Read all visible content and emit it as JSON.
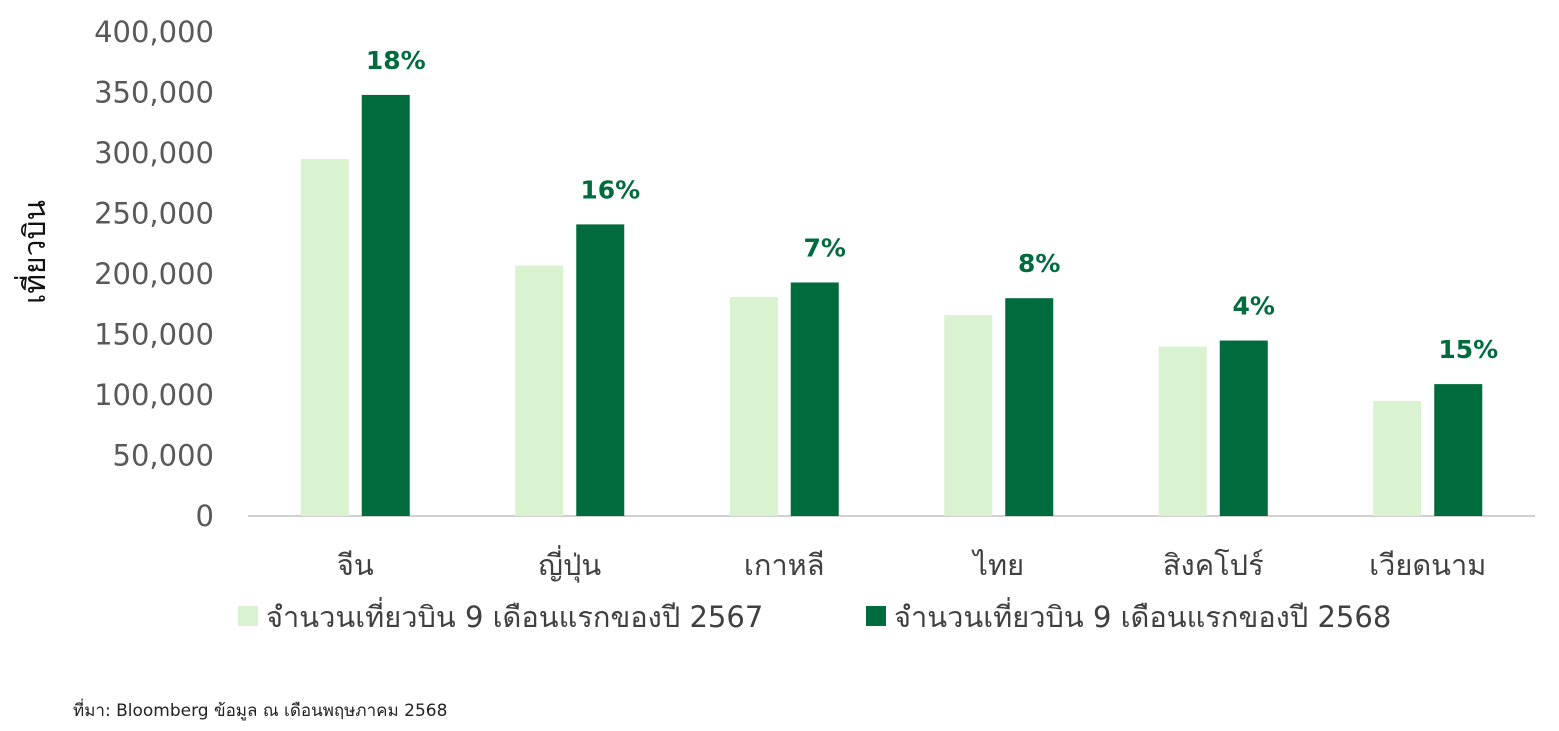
{
  "chart_data": {
    "type": "bar",
    "ylabel": "เที่ยวบิน",
    "ylim": [
      0,
      400000
    ],
    "yticks": [
      "0",
      "50,000",
      "100,000",
      "150,000",
      "200,000",
      "250,000",
      "300,000",
      "350,000",
      "400,000"
    ],
    "ytick_values": [
      0,
      50000,
      100000,
      150000,
      200000,
      250000,
      300000,
      350000,
      400000
    ],
    "categories": [
      "จีน",
      "ญี่ปุ่น",
      "เกาหลี",
      "ไทย",
      "สิงคโปร์",
      "เวียดนาม"
    ],
    "series": [
      {
        "name": "จำนวนเที่ยวบิน 9 เดือนแรกของปี 2567",
        "color": "#d9f2d0",
        "values": [
          295000,
          207000,
          181000,
          166000,
          140000,
          95000
        ]
      },
      {
        "name": "จำนวนเที่ยวบิน 9 เดือนแรกของปี 2568",
        "color": "#006b3c",
        "values": [
          348000,
          241000,
          193000,
          180000,
          145000,
          109000
        ]
      }
    ],
    "data_labels": [
      "18%",
      "16%",
      "7%",
      "8%",
      "4%",
      "15%"
    ],
    "data_label_color": "#006b3c",
    "grid": false,
    "legend_position": "bottom"
  },
  "source": "ที่มา: Bloomberg ข้อมูล ณ เดือนพฤษภาคม 2568"
}
